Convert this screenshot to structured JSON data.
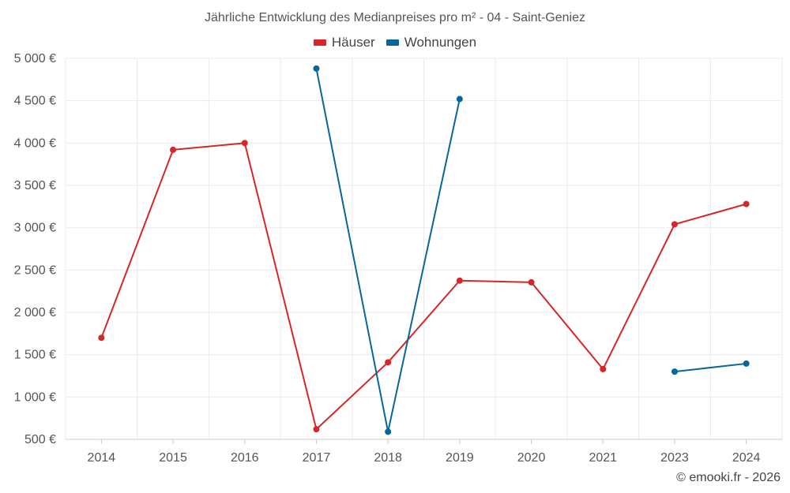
{
  "chart_data": {
    "type": "line",
    "title": "Jährliche Entwicklung des Medianpreises pro m² - 04 - Saint-Geniez",
    "categories": [
      "2014",
      "2015",
      "2016",
      "2017",
      "2018",
      "2019",
      "2020",
      "2021",
      "2023",
      "2024"
    ],
    "y_ticks": [
      "500 €",
      "1 000 €",
      "1 500 €",
      "2 000 €",
      "2 500 €",
      "3 000 €",
      "3 500 €",
      "4 000 €",
      "4 500 €",
      "5 000 €"
    ],
    "ylim": [
      500,
      5000
    ],
    "grid": true,
    "legend_position": "top-center",
    "series": [
      {
        "name": "Häuser",
        "color": "#d62728",
        "values": [
          1700,
          3920,
          4000,
          620,
          1410,
          2375,
          2355,
          1330,
          3040,
          3280
        ]
      },
      {
        "name": "Wohnungen",
        "color": "#05679b",
        "values": [
          null,
          null,
          null,
          4880,
          590,
          4520,
          null,
          null,
          1300,
          1395
        ]
      }
    ]
  },
  "credit": "© emooki.fr - 2026"
}
